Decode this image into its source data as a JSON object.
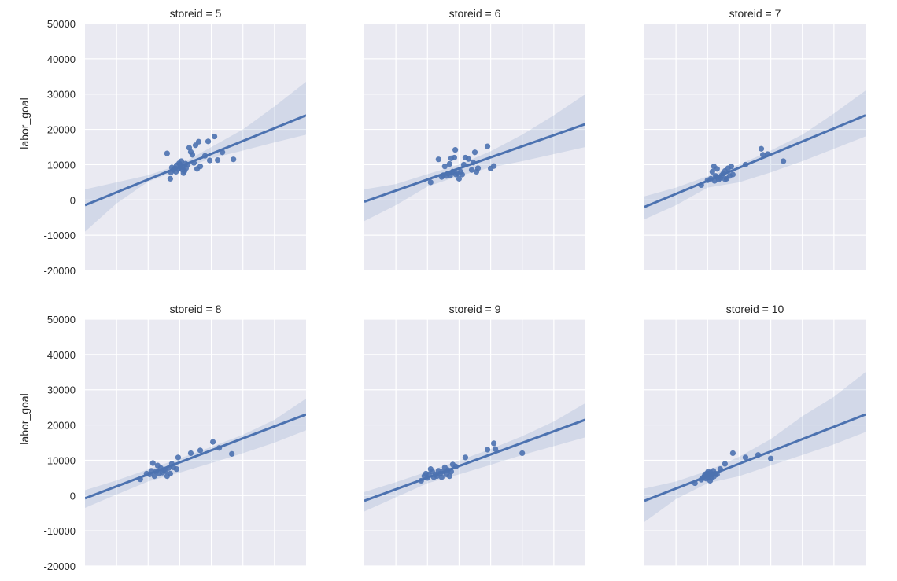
{
  "chart_data": {
    "type": "scatter",
    "layout": "facet-grid",
    "ylabel": "labor_goal",
    "ylim": [
      -20000,
      50000
    ],
    "yticks": [
      50000,
      40000,
      30000,
      20000,
      10000,
      0,
      -10000,
      -20000
    ],
    "xlim": [
      0,
      7
    ],
    "x_tick_labels_shown": false,
    "grid": true,
    "style": {
      "background": "#EAEAF2",
      "grid": "#FFFFFF",
      "series_color": "#4C72B0"
    },
    "facets": [
      {
        "title": "storeid = 5",
        "regression": {
          "x": [
            0,
            7
          ],
          "y": [
            -1500,
            24000
          ]
        },
        "ci_upper": [
          [
            0,
            3000
          ],
          [
            2,
            7000
          ],
          [
            3,
            10000
          ],
          [
            4,
            15000
          ],
          [
            5,
            20000
          ],
          [
            6,
            26500
          ],
          [
            7,
            33500
          ]
        ],
        "ci_lower": [
          [
            0,
            -9000
          ],
          [
            1,
            -1000
          ],
          [
            2,
            5200
          ],
          [
            3,
            8500
          ],
          [
            4,
            11800
          ],
          [
            5,
            14000
          ],
          [
            6,
            16300
          ],
          [
            7,
            18500
          ]
        ],
        "points": [
          [
            2.6,
            13200
          ],
          [
            2.7,
            6000
          ],
          [
            2.72,
            7800
          ],
          [
            2.8,
            8500
          ],
          [
            2.85,
            9000
          ],
          [
            2.9,
            9800
          ],
          [
            2.95,
            8700
          ],
          [
            3.0,
            10200
          ],
          [
            3.05,
            11000
          ],
          [
            3.1,
            9400
          ],
          [
            3.12,
            7600
          ],
          [
            3.15,
            8200
          ],
          [
            3.2,
            9000
          ],
          [
            3.25,
            10000
          ],
          [
            3.3,
            14800
          ],
          [
            3.35,
            13600
          ],
          [
            3.4,
            12800
          ],
          [
            3.45,
            10500
          ],
          [
            3.5,
            15500
          ],
          [
            3.55,
            8800
          ],
          [
            3.6,
            16500
          ],
          [
            3.65,
            9500
          ],
          [
            3.8,
            12500
          ],
          [
            3.9,
            16600
          ],
          [
            3.95,
            11200
          ],
          [
            4.1,
            18000
          ],
          [
            4.2,
            11300
          ],
          [
            4.35,
            13500
          ],
          [
            4.7,
            11500
          ],
          [
            2.75,
            9200
          ],
          [
            2.88,
            8000
          ],
          [
            3.02,
            9200
          ],
          [
            3.08,
            8600
          ],
          [
            2.98,
            10400
          ],
          [
            3.18,
            10300
          ]
        ]
      },
      {
        "title": "storeid = 6",
        "regression": {
          "x": [
            0,
            7
          ],
          "y": [
            -500,
            21500
          ]
        },
        "ci_upper": [
          [
            0,
            3000
          ],
          [
            1,
            4500
          ],
          [
            2,
            7300
          ],
          [
            3,
            10000
          ],
          [
            4,
            13800
          ],
          [
            5,
            18500
          ],
          [
            6,
            24000
          ],
          [
            7,
            30000
          ]
        ],
        "ci_lower": [
          [
            0,
            -6000
          ],
          [
            1,
            -1500
          ],
          [
            2,
            3800
          ],
          [
            3,
            6800
          ],
          [
            4,
            9200
          ],
          [
            5,
            11000
          ],
          [
            6,
            13000
          ],
          [
            7,
            15000
          ]
        ],
        "points": [
          [
            2.1,
            5000
          ],
          [
            2.35,
            11500
          ],
          [
            2.45,
            6500
          ],
          [
            2.5,
            7000
          ],
          [
            2.55,
            9500
          ],
          [
            2.6,
            6800
          ],
          [
            2.65,
            7500
          ],
          [
            2.7,
            10200
          ],
          [
            2.72,
            6900
          ],
          [
            2.75,
            11800
          ],
          [
            2.8,
            8000
          ],
          [
            2.85,
            12000
          ],
          [
            2.88,
            14200
          ],
          [
            2.9,
            7200
          ],
          [
            2.95,
            7500
          ],
          [
            3.0,
            6000
          ],
          [
            3.05,
            8000
          ],
          [
            3.1,
            7200
          ],
          [
            3.15,
            10000
          ],
          [
            3.2,
            12000
          ],
          [
            3.3,
            11600
          ],
          [
            3.4,
            8500
          ],
          [
            3.5,
            13500
          ],
          [
            3.55,
            8000
          ],
          [
            3.6,
            9000
          ],
          [
            3.9,
            15200
          ],
          [
            4.0,
            8900
          ],
          [
            4.1,
            9600
          ],
          [
            3.45,
            10600
          ],
          [
            2.78,
            7800
          ]
        ]
      },
      {
        "title": "storeid = 7",
        "regression": {
          "x": [
            0,
            7
          ],
          "y": [
            -2000,
            24000
          ]
        },
        "ci_upper": [
          [
            0,
            1000
          ],
          [
            1,
            3500
          ],
          [
            2,
            6700
          ],
          [
            3,
            10000
          ],
          [
            4,
            14000
          ],
          [
            5,
            18500
          ],
          [
            6,
            24500
          ],
          [
            7,
            31000
          ]
        ],
        "ci_lower": [
          [
            0,
            -5500
          ],
          [
            1,
            -1500
          ],
          [
            2,
            3500
          ],
          [
            3,
            5000
          ],
          [
            4,
            7800
          ],
          [
            5,
            11000
          ],
          [
            6,
            14500
          ],
          [
            7,
            18000
          ]
        ],
        "points": [
          [
            1.8,
            4200
          ],
          [
            2.0,
            5600
          ],
          [
            2.1,
            6000
          ],
          [
            2.15,
            8000
          ],
          [
            2.2,
            9500
          ],
          [
            2.22,
            5400
          ],
          [
            2.25,
            6800
          ],
          [
            2.3,
            8800
          ],
          [
            2.35,
            5800
          ],
          [
            2.4,
            6200
          ],
          [
            2.45,
            7000
          ],
          [
            2.5,
            7500
          ],
          [
            2.55,
            8200
          ],
          [
            2.6,
            6000
          ],
          [
            2.65,
            9000
          ],
          [
            2.7,
            6800
          ],
          [
            2.75,
            9500
          ],
          [
            2.8,
            7200
          ],
          [
            2.3,
            6500
          ],
          [
            2.55,
            5900
          ],
          [
            3.2,
            10000
          ],
          [
            3.7,
            14500
          ],
          [
            3.75,
            12800
          ],
          [
            3.9,
            13000
          ],
          [
            4.4,
            11000
          ]
        ]
      },
      {
        "title": "storeid = 8",
        "regression": {
          "x": [
            0,
            7
          ],
          "y": [
            -800,
            23000
          ]
        },
        "ci_upper": [
          [
            0,
            1500
          ],
          [
            1,
            4300
          ],
          [
            2,
            7400
          ],
          [
            3,
            10500
          ],
          [
            4,
            13800
          ],
          [
            5,
            17200
          ],
          [
            6,
            21500
          ],
          [
            7,
            27500
          ]
        ],
        "ci_lower": [
          [
            0,
            -3500
          ],
          [
            1,
            300
          ],
          [
            2,
            4000
          ],
          [
            3,
            6500
          ],
          [
            4,
            9200
          ],
          [
            5,
            12000
          ],
          [
            6,
            15000
          ],
          [
            7,
            18500
          ]
        ],
        "points": [
          [
            1.75,
            4600
          ],
          [
            1.95,
            6200
          ],
          [
            2.05,
            6000
          ],
          [
            2.1,
            7000
          ],
          [
            2.15,
            9200
          ],
          [
            2.2,
            5500
          ],
          [
            2.25,
            6800
          ],
          [
            2.3,
            8500
          ],
          [
            2.35,
            6200
          ],
          [
            2.4,
            7800
          ],
          [
            2.45,
            6500
          ],
          [
            2.5,
            7200
          ],
          [
            2.55,
            6900
          ],
          [
            2.6,
            5500
          ],
          [
            2.65,
            7800
          ],
          [
            2.7,
            6200
          ],
          [
            2.75,
            9000
          ],
          [
            2.8,
            8000
          ],
          [
            2.9,
            7500
          ],
          [
            2.95,
            10800
          ],
          [
            3.35,
            12000
          ],
          [
            3.65,
            12800
          ],
          [
            4.05,
            15200
          ],
          [
            4.25,
            13500
          ],
          [
            4.65,
            11800
          ]
        ]
      },
      {
        "title": "storeid = 9",
        "regression": {
          "x": [
            0,
            7
          ],
          "y": [
            -1500,
            21500
          ]
        },
        "ci_upper": [
          [
            0,
            1000
          ],
          [
            1,
            3800
          ],
          [
            2,
            6800
          ],
          [
            3,
            9900
          ],
          [
            4,
            13200
          ],
          [
            5,
            16800
          ],
          [
            6,
            21000
          ],
          [
            7,
            26200
          ]
        ],
        "ci_lower": [
          [
            0,
            -4500
          ],
          [
            1,
            -500
          ],
          [
            2,
            3500
          ],
          [
            3,
            6000
          ],
          [
            4,
            8700
          ],
          [
            5,
            11500
          ],
          [
            6,
            14000
          ],
          [
            7,
            16500
          ]
        ],
        "points": [
          [
            1.8,
            4200
          ],
          [
            1.9,
            5500
          ],
          [
            1.95,
            6200
          ],
          [
            2.0,
            5000
          ],
          [
            2.05,
            6000
          ],
          [
            2.1,
            7500
          ],
          [
            2.15,
            6800
          ],
          [
            2.2,
            5200
          ],
          [
            2.25,
            6000
          ],
          [
            2.3,
            5500
          ],
          [
            2.35,
            7000
          ],
          [
            2.4,
            6200
          ],
          [
            2.45,
            5200
          ],
          [
            2.5,
            6800
          ],
          [
            2.55,
            8000
          ],
          [
            2.6,
            6000
          ],
          [
            2.65,
            7200
          ],
          [
            2.7,
            5500
          ],
          [
            2.75,
            6800
          ],
          [
            2.8,
            8800
          ],
          [
            2.9,
            8200
          ],
          [
            3.2,
            10800
          ],
          [
            3.9,
            13000
          ],
          [
            4.1,
            14800
          ],
          [
            4.15,
            13200
          ],
          [
            5.0,
            12000
          ]
        ]
      },
      {
        "title": "storeid = 10",
        "regression": {
          "x": [
            0,
            7
          ],
          "y": [
            -1500,
            23000
          ]
        },
        "ci_upper": [
          [
            0,
            2000
          ],
          [
            1,
            4000
          ],
          [
            2,
            7000
          ],
          [
            3,
            11000
          ],
          [
            4,
            16000
          ],
          [
            5,
            22500
          ],
          [
            6,
            28000
          ],
          [
            7,
            35000
          ]
        ],
        "ci_lower": [
          [
            0,
            -7500
          ],
          [
            1,
            -1000
          ],
          [
            2,
            3500
          ],
          [
            3,
            5500
          ],
          [
            4,
            8500
          ],
          [
            5,
            11500
          ],
          [
            6,
            14500
          ],
          [
            7,
            18000
          ]
        ],
        "points": [
          [
            1.6,
            3500
          ],
          [
            1.8,
            4500
          ],
          [
            1.85,
            5000
          ],
          [
            1.9,
            5500
          ],
          [
            1.92,
            6000
          ],
          [
            1.95,
            4800
          ],
          [
            1.98,
            6300
          ],
          [
            2.0,
            5200
          ],
          [
            2.02,
            6800
          ],
          [
            2.05,
            5800
          ],
          [
            2.08,
            4200
          ],
          [
            2.1,
            6500
          ],
          [
            2.12,
            5000
          ],
          [
            2.15,
            6000
          ],
          [
            2.18,
            7000
          ],
          [
            2.2,
            5400
          ],
          [
            2.25,
            6200
          ],
          [
            2.3,
            6000
          ],
          [
            2.4,
            7500
          ],
          [
            2.55,
            9000
          ],
          [
            2.8,
            12000
          ],
          [
            3.2,
            10800
          ],
          [
            3.6,
            11500
          ],
          [
            4.0,
            10500
          ]
        ]
      }
    ]
  }
}
